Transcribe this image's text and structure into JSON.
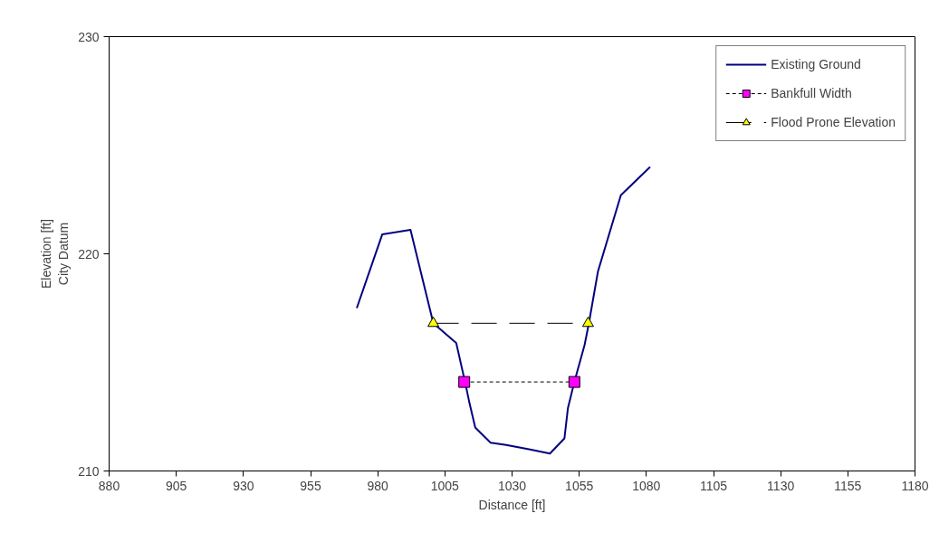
{
  "chart_data": {
    "type": "line",
    "xlabel": "Distance [ft]",
    "ylabel": "Elevation [ft]\nCity Datum",
    "xlim": [
      880,
      1180
    ],
    "xticks": [
      880,
      905,
      930,
      955,
      980,
      1005,
      1030,
      1055,
      1080,
      1105,
      1130,
      1155,
      1180
    ],
    "ylim": [
      210,
      230
    ],
    "yticks": [
      210,
      220,
      230
    ],
    "grid": false,
    "legend": "top right",
    "series": [
      {
        "name": "Existing Ground",
        "color": "#000080",
        "marker": "none",
        "line_style": "solid",
        "x": [
          972.2,
          981.7,
          992.2,
          1000.7,
          1009.2,
          1012.5,
          1014.2,
          1016.3,
          1022.0,
          1027.8,
          1036.3,
          1044.1,
          1049.5,
          1050.8,
          1053.2,
          1057.0,
          1058.6,
          1062.0,
          1070.5,
          1081.4
        ],
        "values": [
          217.5,
          220.9,
          221.1,
          216.8,
          215.9,
          214.1,
          213.1,
          212.0,
          211.3,
          211.2,
          211.0,
          210.8,
          211.5,
          212.9,
          214.1,
          215.8,
          216.8,
          219.2,
          222.7,
          224.0
        ]
      },
      {
        "name": "Bankfull Width",
        "color": "#ff00ff",
        "marker": "square",
        "line_style": "dashed",
        "x": [
          1012.2,
          1053.2
        ],
        "values": [
          214.1,
          214.1
        ]
      },
      {
        "name": "Flood Prone Elevation",
        "color": "#ffff00",
        "marker": "triangle",
        "line_style": "longdash",
        "x": [
          1000.7,
          1058.3
        ],
        "values": [
          216.8,
          216.8
        ]
      }
    ]
  }
}
